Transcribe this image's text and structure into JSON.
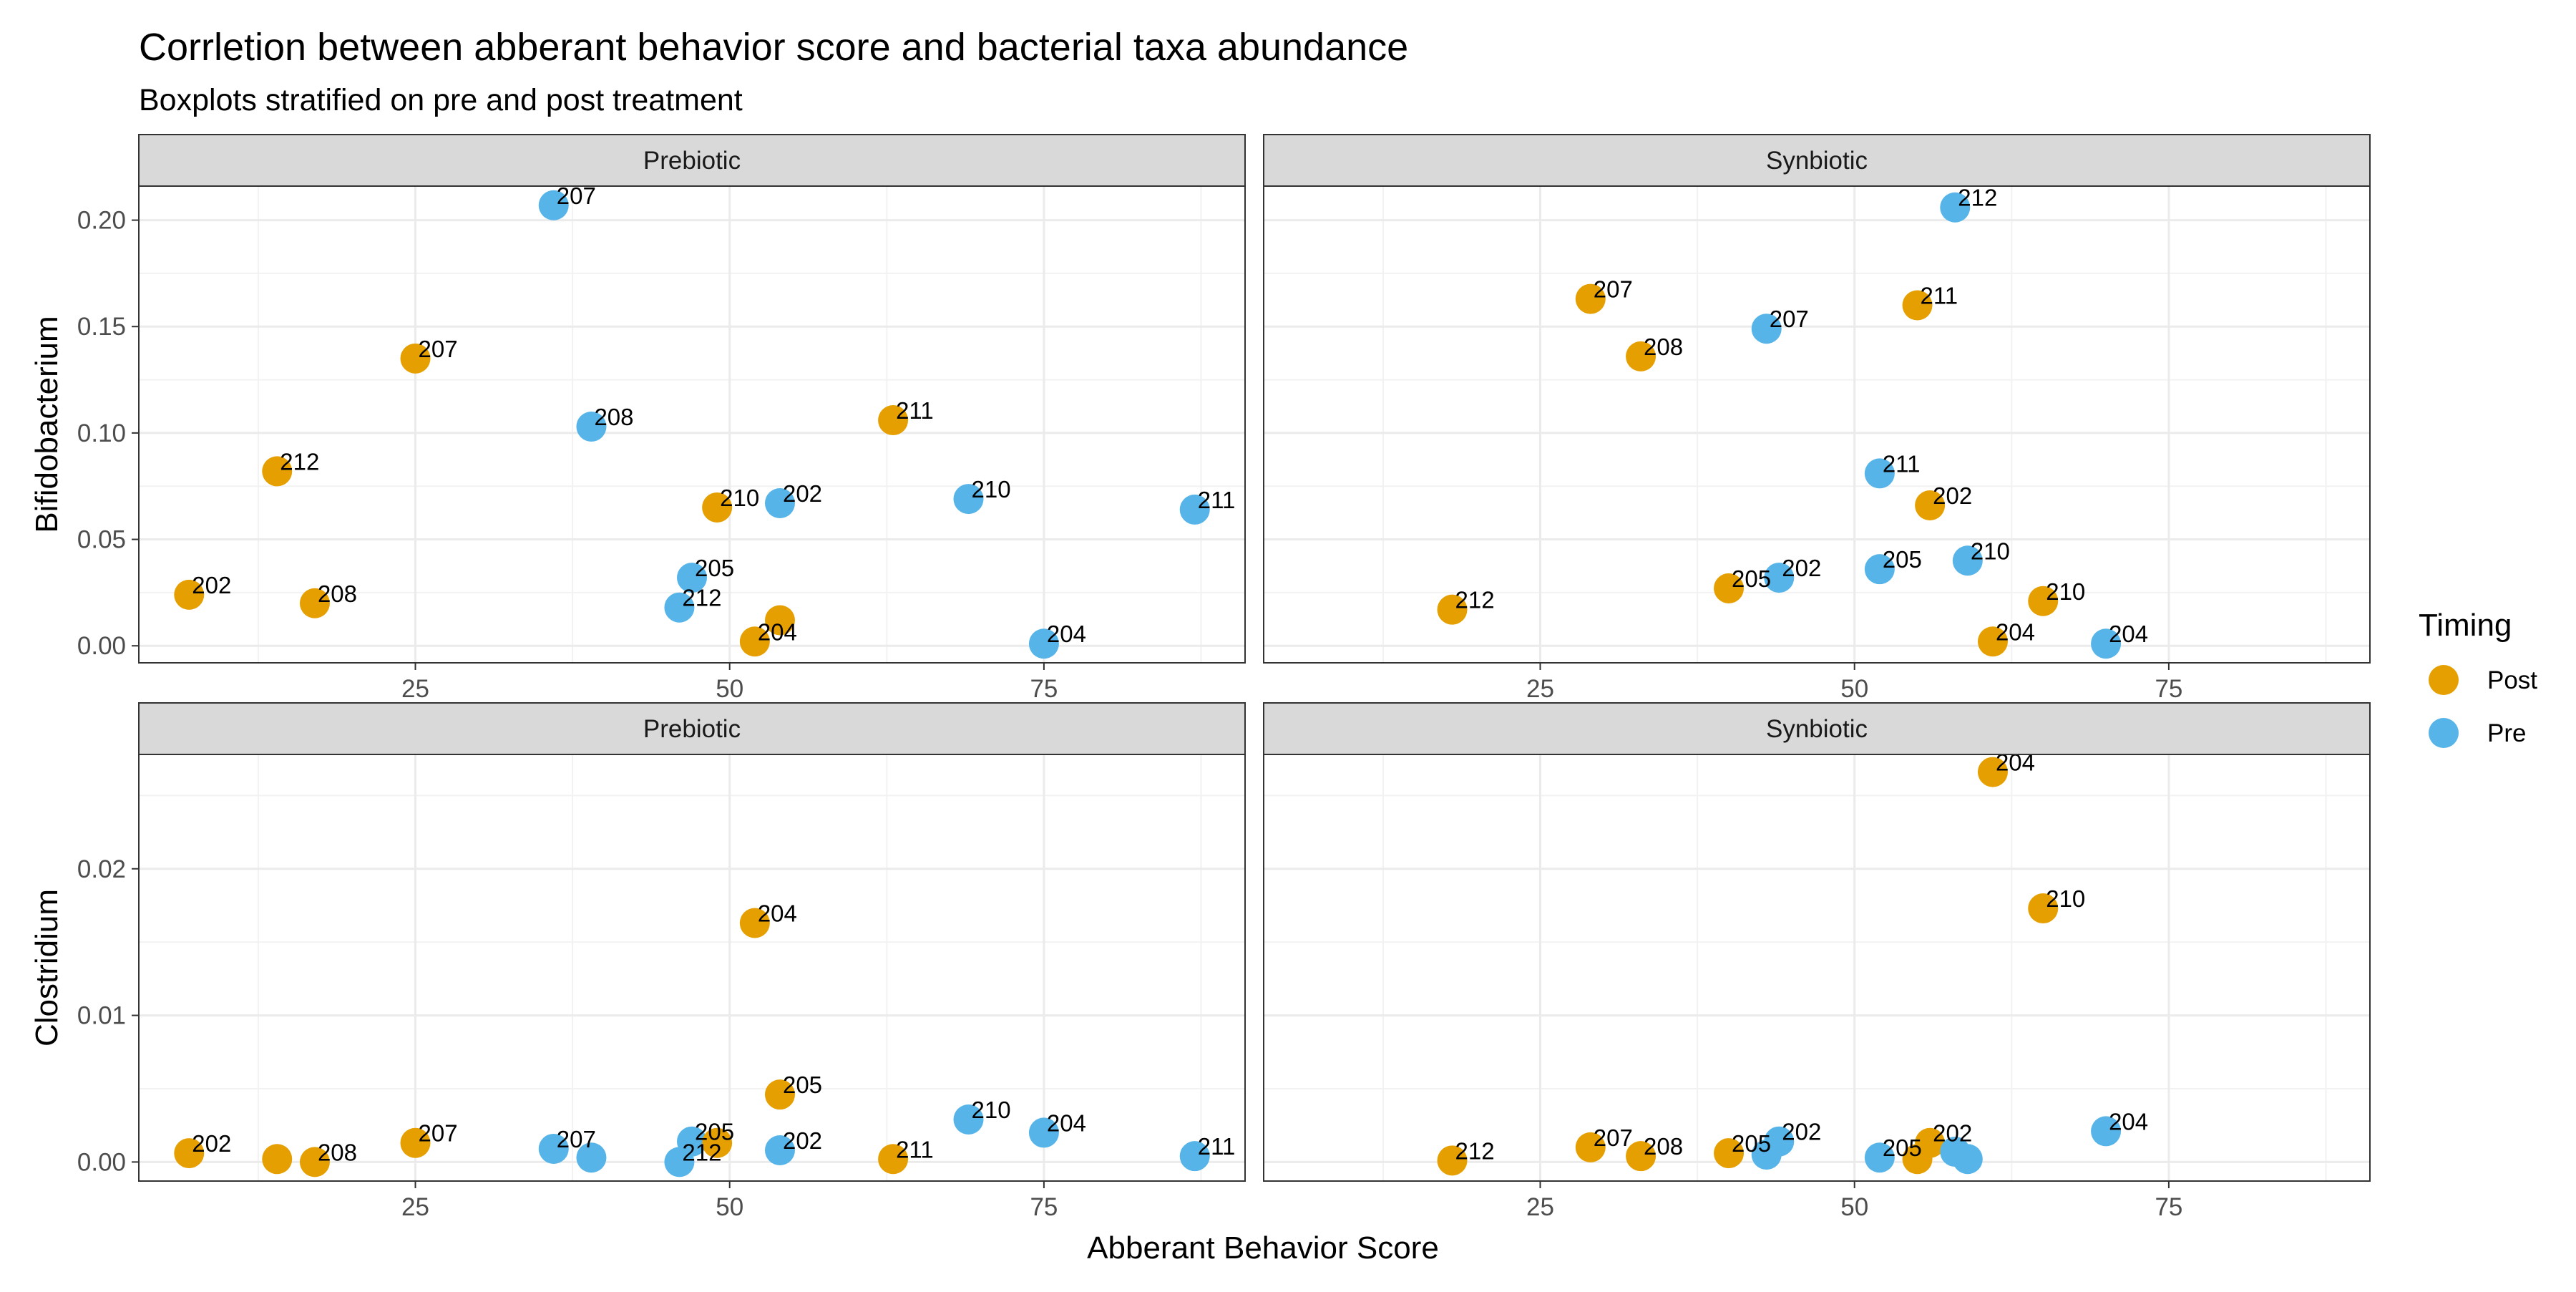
{
  "title": "Corrletion between abberant behavior score and bacterial taxa abundance",
  "subtitle": "Boxplots stratified on pre and post treatment",
  "legend": {
    "title": "Timing",
    "items": [
      {
        "label": "Post",
        "color": "#E69F00"
      },
      {
        "label": "Pre",
        "color": "#56B4E9"
      }
    ],
    "position": "right"
  },
  "chart_data": {
    "type": "scatter",
    "xlabel": "Abberant Behavior Score",
    "x_ticks": [
      25,
      50,
      75
    ],
    "xlim": [
      3,
      91
    ],
    "grid": true,
    "facet_cols": [
      "Prebiotic",
      "Synbiotic"
    ],
    "rows": [
      {
        "ylabel": "Bifidobacterium",
        "ylim": [
          -0.008,
          0.216
        ],
        "y_ticks": [
          0.0,
          0.05,
          0.1,
          0.15,
          0.2
        ],
        "y_tick_labels": [
          "0.00",
          "0.05",
          "0.10",
          "0.15",
          "0.20"
        ],
        "panels": [
          {
            "facet": "Prebiotic",
            "points": [
              {
                "x": 7,
                "y": 0.024,
                "timing": "Post",
                "label": "202"
              },
              {
                "x": 14,
                "y": 0.082,
                "timing": "Post",
                "label": "212"
              },
              {
                "x": 17,
                "y": 0.02,
                "timing": "Post",
                "label": "208"
              },
              {
                "x": 25,
                "y": 0.135,
                "timing": "Post",
                "label": "207"
              },
              {
                "x": 36,
                "y": 0.207,
                "timing": "Pre",
                "label": "207"
              },
              {
                "x": 39,
                "y": 0.103,
                "timing": "Pre",
                "label": "208"
              },
              {
                "x": 46,
                "y": 0.018,
                "timing": "Pre",
                "label": "212"
              },
              {
                "x": 47,
                "y": 0.032,
                "timing": "Pre",
                "label": "205"
              },
              {
                "x": 49,
                "y": 0.065,
                "timing": "Post",
                "label": "210"
              },
              {
                "x": 52,
                "y": 0.002,
                "timing": "Post",
                "label": "204"
              },
              {
                "x": 54,
                "y": 0.012,
                "timing": "Post",
                "label": ""
              },
              {
                "x": 54,
                "y": 0.067,
                "timing": "Pre",
                "label": "202"
              },
              {
                "x": 63,
                "y": 0.106,
                "timing": "Post",
                "label": "211"
              },
              {
                "x": 69,
                "y": 0.069,
                "timing": "Pre",
                "label": "210"
              },
              {
                "x": 75,
                "y": 0.001,
                "timing": "Pre",
                "label": "204"
              },
              {
                "x": 87,
                "y": 0.064,
                "timing": "Pre",
                "label": "211"
              }
            ]
          },
          {
            "facet": "Synbiotic",
            "points": [
              {
                "x": 18,
                "y": 0.017,
                "timing": "Post",
                "label": "212"
              },
              {
                "x": 29,
                "y": 0.163,
                "timing": "Post",
                "label": "207"
              },
              {
                "x": 33,
                "y": 0.136,
                "timing": "Post",
                "label": "208"
              },
              {
                "x": 40,
                "y": 0.027,
                "timing": "Post",
                "label": "205"
              },
              {
                "x": 43,
                "y": 0.149,
                "timing": "Pre",
                "label": "207"
              },
              {
                "x": 44,
                "y": 0.032,
                "timing": "Pre",
                "label": "202"
              },
              {
                "x": 52,
                "y": 0.081,
                "timing": "Pre",
                "label": "211"
              },
              {
                "x": 52,
                "y": 0.036,
                "timing": "Pre",
                "label": "205"
              },
              {
                "x": 55,
                "y": 0.16,
                "timing": "Post",
                "label": "211"
              },
              {
                "x": 56,
                "y": 0.066,
                "timing": "Post",
                "label": "202"
              },
              {
                "x": 58,
                "y": 0.206,
                "timing": "Pre",
                "label": "212"
              },
              {
                "x": 59,
                "y": 0.04,
                "timing": "Pre",
                "label": "210"
              },
              {
                "x": 61,
                "y": 0.002,
                "timing": "Post",
                "label": "204"
              },
              {
                "x": 65,
                "y": 0.021,
                "timing": "Post",
                "label": "210"
              },
              {
                "x": 70,
                "y": 0.001,
                "timing": "Pre",
                "label": "204"
              }
            ]
          }
        ]
      },
      {
        "ylabel": "Clostridium",
        "ylim": [
          -0.0013,
          0.0278
        ],
        "y_ticks": [
          0.0,
          0.01,
          0.02
        ],
        "y_tick_labels": [
          "0.00",
          "0.01",
          "0.02"
        ],
        "panels": [
          {
            "facet": "Prebiotic",
            "points": [
              {
                "x": 7,
                "y": 0.0006,
                "timing": "Post",
                "label": "202"
              },
              {
                "x": 14,
                "y": 0.0002,
                "timing": "Post",
                "label": ""
              },
              {
                "x": 17,
                "y": 0.0,
                "timing": "Post",
                "label": "208"
              },
              {
                "x": 25,
                "y": 0.0013,
                "timing": "Post",
                "label": "207"
              },
              {
                "x": 36,
                "y": 0.0009,
                "timing": "Pre",
                "label": "207"
              },
              {
                "x": 39,
                "y": 0.0003,
                "timing": "Pre",
                "label": ""
              },
              {
                "x": 46,
                "y": 0.0,
                "timing": "Pre",
                "label": "212"
              },
              {
                "x": 47,
                "y": 0.0014,
                "timing": "Pre",
                "label": "205"
              },
              {
                "x": 49,
                "y": 0.0013,
                "timing": "Post",
                "label": ""
              },
              {
                "x": 52,
                "y": 0.0163,
                "timing": "Post",
                "label": "204"
              },
              {
                "x": 54,
                "y": 0.0046,
                "timing": "Post",
                "label": "205"
              },
              {
                "x": 54,
                "y": 0.0008,
                "timing": "Pre",
                "label": "202"
              },
              {
                "x": 63,
                "y": 0.0002,
                "timing": "Post",
                "label": "211"
              },
              {
                "x": 69,
                "y": 0.0029,
                "timing": "Pre",
                "label": "210"
              },
              {
                "x": 75,
                "y": 0.002,
                "timing": "Pre",
                "label": "204"
              },
              {
                "x": 87,
                "y": 0.0004,
                "timing": "Pre",
                "label": "211"
              }
            ]
          },
          {
            "facet": "Synbiotic",
            "points": [
              {
                "x": 18,
                "y": 0.0001,
                "timing": "Post",
                "label": "212"
              },
              {
                "x": 29,
                "y": 0.001,
                "timing": "Post",
                "label": "207"
              },
              {
                "x": 33,
                "y": 0.0004,
                "timing": "Post",
                "label": "208"
              },
              {
                "x": 40,
                "y": 0.0006,
                "timing": "Post",
                "label": "205"
              },
              {
                "x": 43,
                "y": 0.0005,
                "timing": "Pre",
                "label": ""
              },
              {
                "x": 44,
                "y": 0.0014,
                "timing": "Pre",
                "label": "202"
              },
              {
                "x": 52,
                "y": 0.0003,
                "timing": "Pre",
                "label": "205"
              },
              {
                "x": 55,
                "y": 0.0002,
                "timing": "Post",
                "label": ""
              },
              {
                "x": 56,
                "y": 0.0013,
                "timing": "Post",
                "label": "202"
              },
              {
                "x": 58,
                "y": 0.0007,
                "timing": "Pre",
                "label": ""
              },
              {
                "x": 59,
                "y": 0.0002,
                "timing": "Pre",
                "label": ""
              },
              {
                "x": 61,
                "y": 0.0266,
                "timing": "Post",
                "label": "204"
              },
              {
                "x": 65,
                "y": 0.0173,
                "timing": "Post",
                "label": "210"
              },
              {
                "x": 70,
                "y": 0.0021,
                "timing": "Pre",
                "label": "204"
              }
            ]
          }
        ]
      }
    ]
  }
}
